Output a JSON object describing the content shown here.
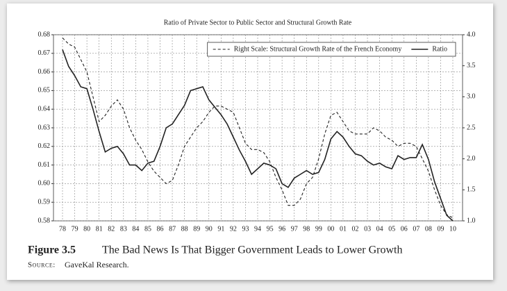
{
  "chart_data": {
    "type": "line",
    "title": "Ratio of Private Sector to Public Sector and Structural Growth Rate",
    "categories": [
      "78",
      null,
      "79",
      null,
      "80",
      null,
      "81",
      null,
      "82",
      null,
      "83",
      null,
      "84",
      null,
      "85",
      null,
      "86",
      null,
      "87",
      null,
      "88",
      null,
      "89",
      null,
      "90",
      null,
      "91",
      null,
      "92",
      null,
      "93",
      null,
      "94",
      null,
      "95",
      null,
      "96",
      null,
      "97",
      null,
      "98",
      null,
      "99",
      null,
      "00",
      null,
      "01",
      null,
      "02",
      null,
      "03",
      null,
      "04",
      null,
      "05",
      null,
      "06",
      null,
      "07",
      null,
      "08",
      null,
      "09",
      null,
      "10"
    ],
    "series": [
      {
        "name": "Right Scale: Structural Growth Rate of the French Economy",
        "color": "#222222",
        "dash": true,
        "axis": "y2",
        "values": [
          3.95,
          3.85,
          3.8,
          3.6,
          3.4,
          3.0,
          2.6,
          2.7,
          2.85,
          2.95,
          2.8,
          2.5,
          2.3,
          2.15,
          1.95,
          1.8,
          1.7,
          1.6,
          1.65,
          1.9,
          2.2,
          2.35,
          2.5,
          2.6,
          2.75,
          2.85,
          2.85,
          2.8,
          2.75,
          2.5,
          2.25,
          2.15,
          2.15,
          2.1,
          1.95,
          1.7,
          1.5,
          1.25,
          1.25,
          1.35,
          1.6,
          1.7,
          2.0,
          2.4,
          2.7,
          2.75,
          2.6,
          2.45,
          2.4,
          2.4,
          2.4,
          2.5,
          2.45,
          2.35,
          2.3,
          2.2,
          2.25,
          2.25,
          2.2,
          2.0,
          1.8,
          1.5,
          1.25,
          1.1,
          1.05
        ]
      },
      {
        "name": "Ratio",
        "color": "#222222",
        "dash": false,
        "values": [
          0.672,
          0.663,
          0.658,
          0.652,
          0.651,
          0.64,
          0.628,
          0.617,
          0.619,
          0.62,
          0.616,
          0.61,
          0.61,
          0.607,
          0.611,
          0.612,
          0.62,
          0.63,
          0.632,
          0.637,
          0.642,
          0.65,
          0.651,
          0.652,
          0.645,
          0.641,
          0.637,
          0.632,
          0.625,
          0.618,
          0.612,
          0.605,
          0.608,
          0.611,
          0.61,
          0.608,
          0.6,
          0.598,
          0.603,
          0.605,
          0.607,
          0.605,
          0.606,
          0.613,
          0.624,
          0.628,
          0.625,
          0.62,
          0.616,
          0.615,
          0.612,
          0.61,
          0.611,
          0.609,
          0.608,
          0.615,
          0.613,
          0.614,
          0.614,
          0.621,
          0.613,
          0.601,
          0.592,
          0.583,
          0.58
        ]
      }
    ],
    "ylim": [
      0.58,
      0.68
    ],
    "yticks": [
      0.58,
      0.59,
      {
        "value": 0.6,
        "label": "0.60"
      },
      0.61,
      0.62,
      0.63,
      0.64,
      0.65,
      0.66,
      0.67,
      0.68
    ],
    "y2lim": [
      1,
      4
    ],
    "y2ticks": [
      {
        "value": 1,
        "label": "1.0"
      },
      1.5,
      {
        "value": 2,
        "label": "2.0"
      },
      2.5,
      {
        "value": 3,
        "label": "3.0"
      },
      3.5,
      {
        "value": 4,
        "label": "4.0"
      }
    ],
    "grid": true,
    "legend": "top-right",
    "figure_label": "Figure 3.5",
    "caption": "The Bad News Is That Bigger Government Leads to Lower Growth",
    "source_label": "Source:",
    "source": "GaveKal Research."
  }
}
